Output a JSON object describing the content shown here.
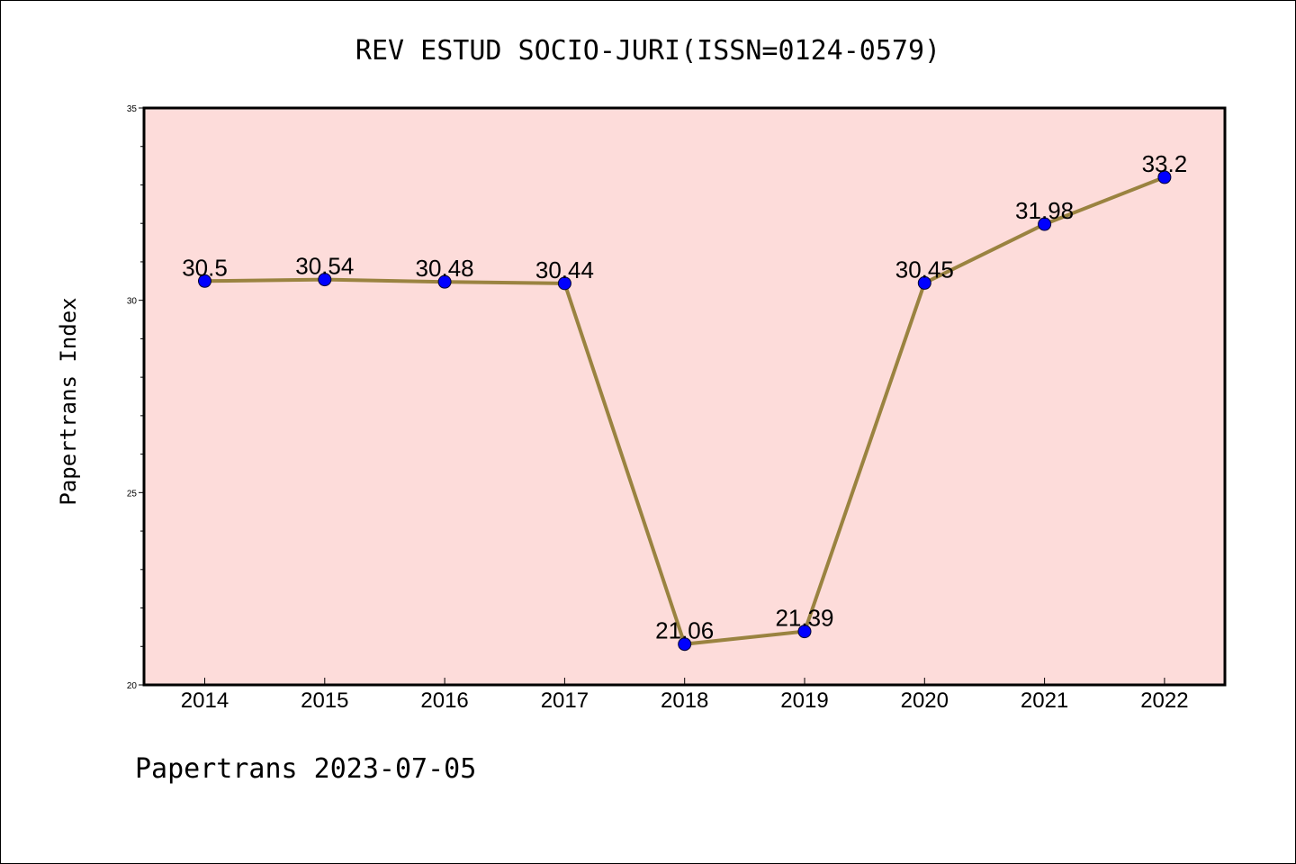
{
  "chart_data": {
    "type": "line",
    "title": "REV ESTUD SOCIO-JURI(ISSN=0124-0579)",
    "xlabel": "",
    "ylabel": "Papertrans Index",
    "categories": [
      "2014",
      "2015",
      "2016",
      "2017",
      "2018",
      "2019",
      "2020",
      "2021",
      "2022"
    ],
    "series": [
      {
        "values": [
          30.5,
          30.54,
          30.48,
          30.44,
          21.06,
          21.39,
          30.45,
          31.98,
          33.2
        ],
        "labels": [
          "30.5",
          "30.54",
          "30.48",
          "30.44",
          "21.06",
          "21.39",
          "30.45",
          "31.98",
          "33.2"
        ]
      }
    ],
    "ylim": [
      20,
      35
    ],
    "yticks": [
      "20",
      "25",
      "30",
      "35"
    ],
    "grid": false,
    "plot_background": "#fddcda",
    "line_color": "#9a8340",
    "marker_color": "#0000ff"
  },
  "footer": "Papertrans 2023-07-05"
}
